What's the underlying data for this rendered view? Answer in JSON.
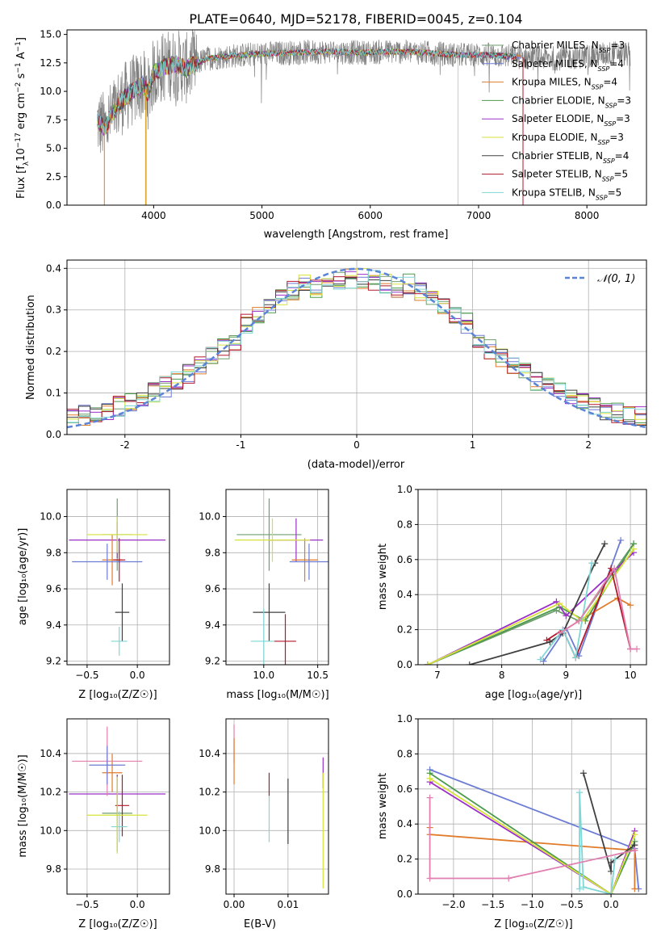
{
  "figure": {
    "title": "PLATE=0640, MJD=52178, FIBERID=0045, z=0.104"
  },
  "legend_entries": [
    {
      "model": "Chabrier MILES",
      "nssp": "3",
      "color": "#6e9e6e"
    },
    {
      "model": "Salpeter MILES",
      "nssp": "4",
      "color": "#6c7bd3"
    },
    {
      "model": "Kroupa MILES",
      "nssp": "4",
      "color": "#e07b2a"
    },
    {
      "model": "Chabrier ELODIE",
      "nssp": "3",
      "color": "#4c9a4c"
    },
    {
      "model": "Salpeter ELODIE",
      "nssp": "3",
      "color": "#9b30c8"
    },
    {
      "model": "Kroupa ELODIE",
      "nssp": "3",
      "color": "#d6e23a"
    },
    {
      "model": "Chabrier STELIB",
      "nssp": "4",
      "color": "#404040"
    },
    {
      "model": "Salpeter STELIB",
      "nssp": "5",
      "color": "#b2182b"
    },
    {
      "model": "Kroupa STELIB",
      "nssp": "5",
      "color": "#7fd6d6"
    }
  ],
  "chart_data": [
    {
      "id": "spectrum",
      "type": "line",
      "xlabel": "wavelength [Angstrom, rest frame]",
      "ylabel_pre": "Flux [f",
      "ylabel_sub": "λ",
      "ylabel_mid": "10",
      "ylabel_sup1": "−17",
      "ylabel_unit": " erg cm",
      "ylabel_sup2": "−2",
      "ylabel_s": " s",
      "ylabel_sup3": "−1",
      "ylabel_a": " A",
      "ylabel_sup4": "−1",
      "ylabel_end": "]",
      "xlim": [
        3200,
        8550
      ],
      "ylim": [
        0,
        15.4
      ],
      "xticks": [
        4000,
        5000,
        6000,
        7000,
        8000
      ],
      "yticks": [
        0.0,
        2.5,
        5.0,
        7.5,
        10.0,
        12.5,
        15.0
      ],
      "continuum_x": [
        3480,
        3550,
        3620,
        3700,
        3800,
        3900,
        3950,
        4000,
        4100,
        4200,
        4300,
        4500,
        4700,
        5000,
        5300,
        5600,
        5900,
        6200,
        6500,
        6800,
        7100,
        7400,
        7700,
        8000,
        8300,
        8400
      ],
      "continuum_y": [
        7.3,
        6.8,
        8.0,
        9.2,
        10.0,
        10.6,
        9.8,
        11.6,
        12.2,
        12.4,
        12.0,
        12.9,
        13.1,
        13.3,
        13.4,
        13.5,
        13.4,
        13.5,
        13.4,
        13.2,
        13.2,
        13.0,
        12.9,
        13.1,
        13.4,
        13.2
      ]
    },
    {
      "id": "residuals",
      "type": "histogram",
      "xlabel": "(data-model)/error",
      "ylabel": "Normed distribution",
      "xlim": [
        -2.5,
        2.5
      ],
      "ylim": [
        0,
        0.42
      ],
      "xticks": [
        -2,
        -1,
        0,
        1,
        2
      ],
      "yticks": [
        0.0,
        0.1,
        0.2,
        0.3,
        0.4
      ],
      "bins": 50,
      "gaussian_label": "𝒩(0, 1)",
      "gaussian_color": "#5b84d6"
    },
    {
      "id": "age-vs-Z",
      "type": "scatter",
      "xlabel": "Z [log₁₀(Z/Z☉)]",
      "ylabel": "age  [log₁₀(age/yr)]",
      "xlim": [
        -0.7,
        0.32
      ],
      "ylim": [
        9.18,
        10.15
      ],
      "xticks": [
        -0.5,
        0.0
      ],
      "xticklabels": [
        "−0.5",
        "0.0"
      ],
      "yticks": [
        9.2,
        9.4,
        9.6,
        9.8,
        10.0
      ],
      "points": [
        {
          "x": -0.2,
          "y": 9.9,
          "ex": 0.15,
          "ey": 0.2,
          "c": 0
        },
        {
          "x": -0.2,
          "y": 9.87,
          "ex": 0.48,
          "ey": 0.1,
          "c": 4
        },
        {
          "x": -0.25,
          "y": 9.76,
          "ex": 0.1,
          "ey": 0.14,
          "c": 2
        },
        {
          "x": -0.3,
          "y": 9.75,
          "ex": 0.35,
          "ey": 0.1,
          "c": 1
        },
        {
          "x": -0.15,
          "y": 9.47,
          "ex": 0.07,
          "ey": 0.16,
          "c": 6
        },
        {
          "x": -0.18,
          "y": 9.31,
          "ex": 0.08,
          "ey": 0.08,
          "c": 8
        },
        {
          "x": -0.2,
          "y": 9.9,
          "ex": 0.3,
          "ey": 0.1,
          "c": 5
        },
        {
          "x": -0.18,
          "y": 9.76,
          "ex": 0.06,
          "ey": 0.12,
          "c": 7
        }
      ]
    },
    {
      "id": "age-vs-mass",
      "type": "scatter",
      "xlabel": "mass [log₁₀(M/M☉)]",
      "ylabel": "",
      "xlim": [
        9.65,
        10.6
      ],
      "ylim": [
        9.18,
        10.15
      ],
      "xticks": [
        10.0,
        10.5
      ],
      "xticklabels": [
        "10.0",
        "10.5"
      ],
      "yticks": [
        9.2,
        9.4,
        9.6,
        9.8,
        10.0
      ],
      "points": [
        {
          "x": 10.05,
          "y": 9.9,
          "ex": 0.3,
          "ey": 0.2,
          "c": 0
        },
        {
          "x": 10.3,
          "y": 9.87,
          "ex": 0.25,
          "ey": 0.12,
          "c": 4
        },
        {
          "x": 10.38,
          "y": 9.76,
          "ex": 0.12,
          "ey": 0.12,
          "c": 2
        },
        {
          "x": 10.42,
          "y": 9.75,
          "ex": 0.18,
          "ey": 0.1,
          "c": 1
        },
        {
          "x": 10.05,
          "y": 9.47,
          "ex": 0.15,
          "ey": 0.16,
          "c": 6
        },
        {
          "x": 10.0,
          "y": 9.31,
          "ex": 0.12,
          "ey": 0.18,
          "c": 8
        },
        {
          "x": 10.2,
          "y": 9.31,
          "ex": 0.1,
          "ey": 0.15,
          "c": 7
        },
        {
          "x": 10.08,
          "y": 9.87,
          "ex": 0.35,
          "ey": 0.12,
          "c": 5
        }
      ]
    },
    {
      "id": "mass-weight-vs-age",
      "type": "line",
      "xlabel": "age  [log₁₀(age/yr)]",
      "ylabel": "mass weight",
      "xlim": [
        6.7,
        10.25
      ],
      "ylim": [
        0,
        1.0
      ],
      "xticks": [
        7,
        8,
        9,
        10
      ],
      "yticks": [
        0.0,
        0.2,
        0.4,
        0.6,
        0.8,
        1.0
      ],
      "series": [
        {
          "c": 0,
          "x": [
            6.85,
            8.85,
            9.2,
            10.05
          ],
          "y": [
            0.0,
            0.31,
            0.25,
            0.69
          ]
        },
        {
          "c": 1,
          "x": [
            8.65,
            9.0,
            9.2,
            9.85
          ],
          "y": [
            0.02,
            0.21,
            0.05,
            0.71
          ]
        },
        {
          "c": 2,
          "x": [
            8.9,
            9.2,
            9.8,
            10.0
          ],
          "y": [
            0.18,
            0.25,
            0.38,
            0.34
          ]
        },
        {
          "c": 3,
          "x": [
            6.85,
            8.9,
            9.3,
            10.05
          ],
          "y": [
            0.0,
            0.33,
            0.25,
            0.69
          ]
        },
        {
          "c": 4,
          "x": [
            6.85,
            8.85,
            9.0,
            10.05
          ],
          "y": [
            0.0,
            0.36,
            0.28,
            0.64
          ]
        },
        {
          "c": 5,
          "x": [
            6.85,
            8.9,
            9.25,
            10.05
          ],
          "y": [
            0.0,
            0.35,
            0.25,
            0.66
          ]
        },
        {
          "c": 6,
          "x": [
            7.5,
            8.75,
            8.95,
            9.45,
            9.6
          ],
          "y": [
            0.0,
            0.13,
            0.18,
            0.58,
            0.69
          ]
        },
        {
          "c": 7,
          "x": [
            8.7,
            8.95,
            9.15,
            9.7,
            10.0
          ],
          "y": [
            0.14,
            0.2,
            0.04,
            0.55,
            0.09
          ]
        },
        {
          "c": 8,
          "x": [
            8.6,
            8.95,
            9.15,
            9.4
          ],
          "y": [
            0.03,
            0.2,
            0.04,
            0.58
          ]
        },
        {
          "c": 9,
          "x": [
            8.9,
            9.2,
            9.75,
            10.0,
            10.1
          ],
          "y": [
            0.18,
            0.25,
            0.55,
            0.09,
            0.09
          ]
        }
      ]
    },
    {
      "id": "mass-vs-Z",
      "type": "scatter",
      "xlabel": "Z [log₁₀(Z/Z☉)]",
      "ylabel": "mass [log₁₀(M/M☉)]",
      "xlim": [
        -0.7,
        0.32
      ],
      "ylim": [
        9.67,
        10.58
      ],
      "xticks": [
        -0.5,
        0.0
      ],
      "xticklabels": [
        "−0.5",
        "0.0"
      ],
      "yticks": [
        9.8,
        10.0,
        10.2,
        10.4
      ],
      "points": [
        {
          "x": -0.2,
          "y": 10.09,
          "ex": 0.15,
          "ey": 0.2,
          "c": 0
        },
        {
          "x": -0.2,
          "y": 10.19,
          "ex": 0.48,
          "ey": 0.1,
          "c": 4
        },
        {
          "x": -0.25,
          "y": 10.3,
          "ex": 0.1,
          "ey": 0.1,
          "c": 2
        },
        {
          "x": -0.3,
          "y": 10.36,
          "ex": 0.35,
          "ey": 0.18,
          "c": 9
        },
        {
          "x": -0.15,
          "y": 10.13,
          "ex": 0.07,
          "ey": 0.16,
          "c": 7
        },
        {
          "x": -0.18,
          "y": 10.02,
          "ex": 0.08,
          "ey": 0.08,
          "c": 8
        },
        {
          "x": -0.2,
          "y": 10.08,
          "ex": 0.3,
          "ey": 0.2,
          "c": 5
        },
        {
          "x": -0.3,
          "y": 10.34,
          "ex": 0.18,
          "ey": 0.1,
          "c": 1
        }
      ]
    },
    {
      "id": "mass-vs-EBV",
      "type": "scatter",
      "xlabel": "E(B-V)",
      "ylabel": "",
      "xlim": [
        -0.0015,
        0.0175
      ],
      "ylim": [
        9.67,
        10.58
      ],
      "xticks": [
        0.0,
        0.01
      ],
      "xticklabels": [
        "0.00",
        "0.01"
      ],
      "yticks": [
        9.8,
        10.0,
        10.2,
        10.4
      ],
      "points": [
        {
          "x": 0.0,
          "y": 10.45,
          "ex": 0.0,
          "ey": 0.1,
          "c": 9
        },
        {
          "x": 0.0,
          "y": 10.36,
          "ex": 0.0,
          "ey": 0.12,
          "c": 2
        },
        {
          "x": 0.0065,
          "y": 10.24,
          "ex": 0.0,
          "ey": 0.06,
          "c": 7
        },
        {
          "x": 0.0065,
          "y": 10.06,
          "ex": 0.0,
          "ey": 0.12,
          "c": 8
        },
        {
          "x": 0.01,
          "y": 10.1,
          "ex": 0.0,
          "ey": 0.17,
          "c": 6
        },
        {
          "x": 0.0165,
          "y": 10.3,
          "ex": 0.0,
          "ey": 0.08,
          "c": 4
        },
        {
          "x": 0.0165,
          "y": 10.0,
          "ex": 0.0,
          "ey": 0.3,
          "c": 5
        }
      ]
    },
    {
      "id": "mass-weight-vs-Z",
      "type": "line",
      "xlabel": "Z [log₁₀(Z/Z☉)]",
      "ylabel": "mass weight",
      "xlim": [
        -2.45,
        0.45
      ],
      "ylim": [
        0,
        1.0
      ],
      "xticks": [
        -2.0,
        -1.5,
        -1.0,
        -0.5,
        0.0
      ],
      "xticklabels": [
        "−2.0",
        "−1.5",
        "−1.0",
        "−0.5",
        "0.0"
      ],
      "yticks": [
        0.0,
        0.2,
        0.4,
        0.6,
        0.8,
        1.0
      ],
      "series": [
        {
          "c": 1,
          "x": [
            -2.3,
            0.3,
            0.35
          ],
          "y": [
            0.71,
            0.26,
            0.03
          ]
        },
        {
          "c": 2,
          "x": [
            -2.3,
            -2.3,
            0.3,
            0.3
          ],
          "y": [
            0.38,
            0.34,
            0.25,
            0.03
          ]
        },
        {
          "c": 3,
          "x": [
            -2.3,
            0.0,
            0.3
          ],
          "y": [
            0.69,
            0.0,
            0.3
          ]
        },
        {
          "c": 4,
          "x": [
            -2.3,
            0.0,
            0.3
          ],
          "y": [
            0.64,
            0.0,
            0.36
          ]
        },
        {
          "c": 5,
          "x": [
            -2.3,
            0.0,
            0.3
          ],
          "y": [
            0.66,
            0.0,
            0.34
          ]
        },
        {
          "c": 6,
          "x": [
            -0.35,
            0.0,
            0.0,
            0.3
          ],
          "y": [
            0.69,
            0.13,
            0.18,
            0.28
          ]
        },
        {
          "c": 8,
          "x": [
            -0.4,
            -0.4,
            -0.35,
            0.0,
            0.05
          ],
          "y": [
            0.03,
            0.58,
            0.04,
            0.0,
            0.2
          ]
        },
        {
          "c": 9,
          "x": [
            -2.3,
            -2.3,
            -1.3,
            0.3
          ],
          "y": [
            0.55,
            0.09,
            0.09,
            0.25
          ]
        }
      ]
    }
  ]
}
